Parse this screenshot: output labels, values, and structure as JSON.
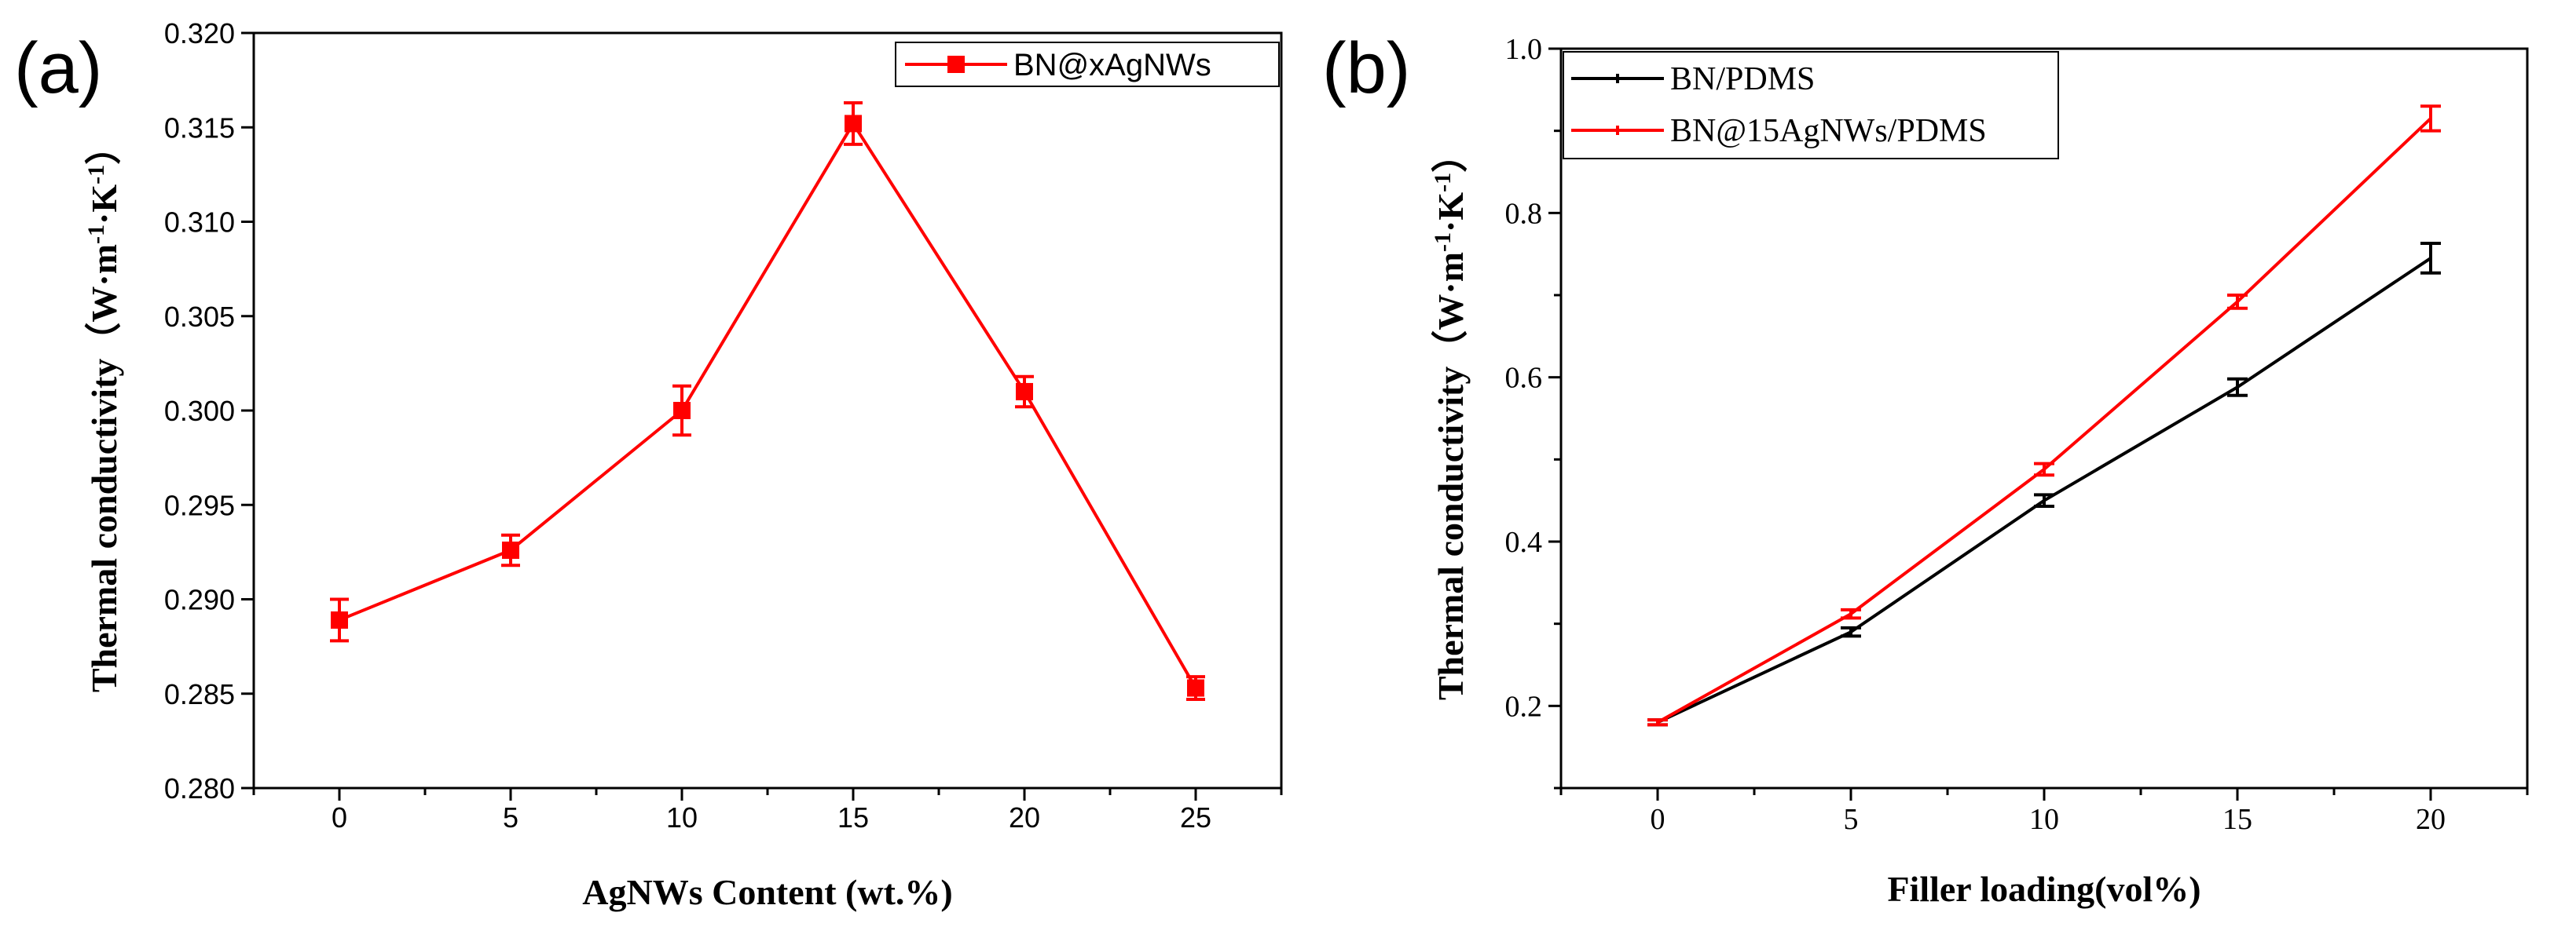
{
  "chart_data": [
    {
      "panel_label": "(a)",
      "type": "line",
      "x": [
        0,
        5,
        10,
        15,
        20,
        25
      ],
      "xlim": [
        -2.5,
        27.5
      ],
      "xticks": [
        0,
        5,
        10,
        15,
        20,
        25
      ],
      "ylim": [
        0.28,
        0.32
      ],
      "yticks": [
        0.28,
        0.285,
        0.29,
        0.295,
        0.3,
        0.305,
        0.31,
        0.315,
        0.32
      ],
      "ytick_labels": [
        "0.280",
        "0.285",
        "0.290",
        "0.295",
        "0.300",
        "0.305",
        "0.310",
        "0.315",
        "0.320"
      ],
      "xlabel": "AgNWs Content (wt.%)",
      "ylabel_text": "Thermal conductivity（W·m",
      "ylabel_sup1": "-1",
      "ylabel_mid": "·K",
      "ylabel_sup2": "-1",
      "ylabel_end": "）",
      "legend_position": "top-right",
      "series": [
        {
          "name": "BN@xAgNWs",
          "color": "#ff0000",
          "marker": "square",
          "values": [
            0.2889,
            0.2926,
            0.3,
            0.3152,
            0.301,
            0.2853
          ],
          "errors": [
            0.0011,
            0.0008,
            0.0013,
            0.0011,
            0.0008,
            0.0006
          ]
        }
      ]
    },
    {
      "panel_label": "(b)",
      "type": "line",
      "x": [
        0,
        5,
        10,
        15,
        20
      ],
      "xlim": [
        -2.5,
        22.5
      ],
      "xticks": [
        0,
        5,
        10,
        15,
        20
      ],
      "ylim": [
        0.1,
        1.0
      ],
      "yticks": [
        0.2,
        0.4,
        0.6,
        0.8,
        1.0
      ],
      "ytick_labels": [
        "0.2",
        "0.4",
        "0.6",
        "0.8",
        "1.0"
      ],
      "xlabel": "Filler loading(vol%)",
      "ylabel_text": "Thermal conductivity（W·m",
      "ylabel_sup1": "-1",
      "ylabel_mid": "·K",
      "ylabel_sup2": "-1",
      "ylabel_end": "）",
      "legend_position": "top-left",
      "series": [
        {
          "name": "BN/PDMS",
          "color": "#000000",
          "marker": "none",
          "values": [
            0.18,
            0.29,
            0.45,
            0.588,
            0.745
          ],
          "errors": [
            0.003,
            0.005,
            0.007,
            0.01,
            0.018
          ]
        },
        {
          "name": "BN@15AgNWs/PDMS",
          "color": "#ff0000",
          "marker": "none",
          "values": [
            0.18,
            0.312,
            0.488,
            0.692,
            0.915
          ],
          "errors": [
            0.003,
            0.005,
            0.007,
            0.008,
            0.015
          ]
        }
      ]
    }
  ]
}
